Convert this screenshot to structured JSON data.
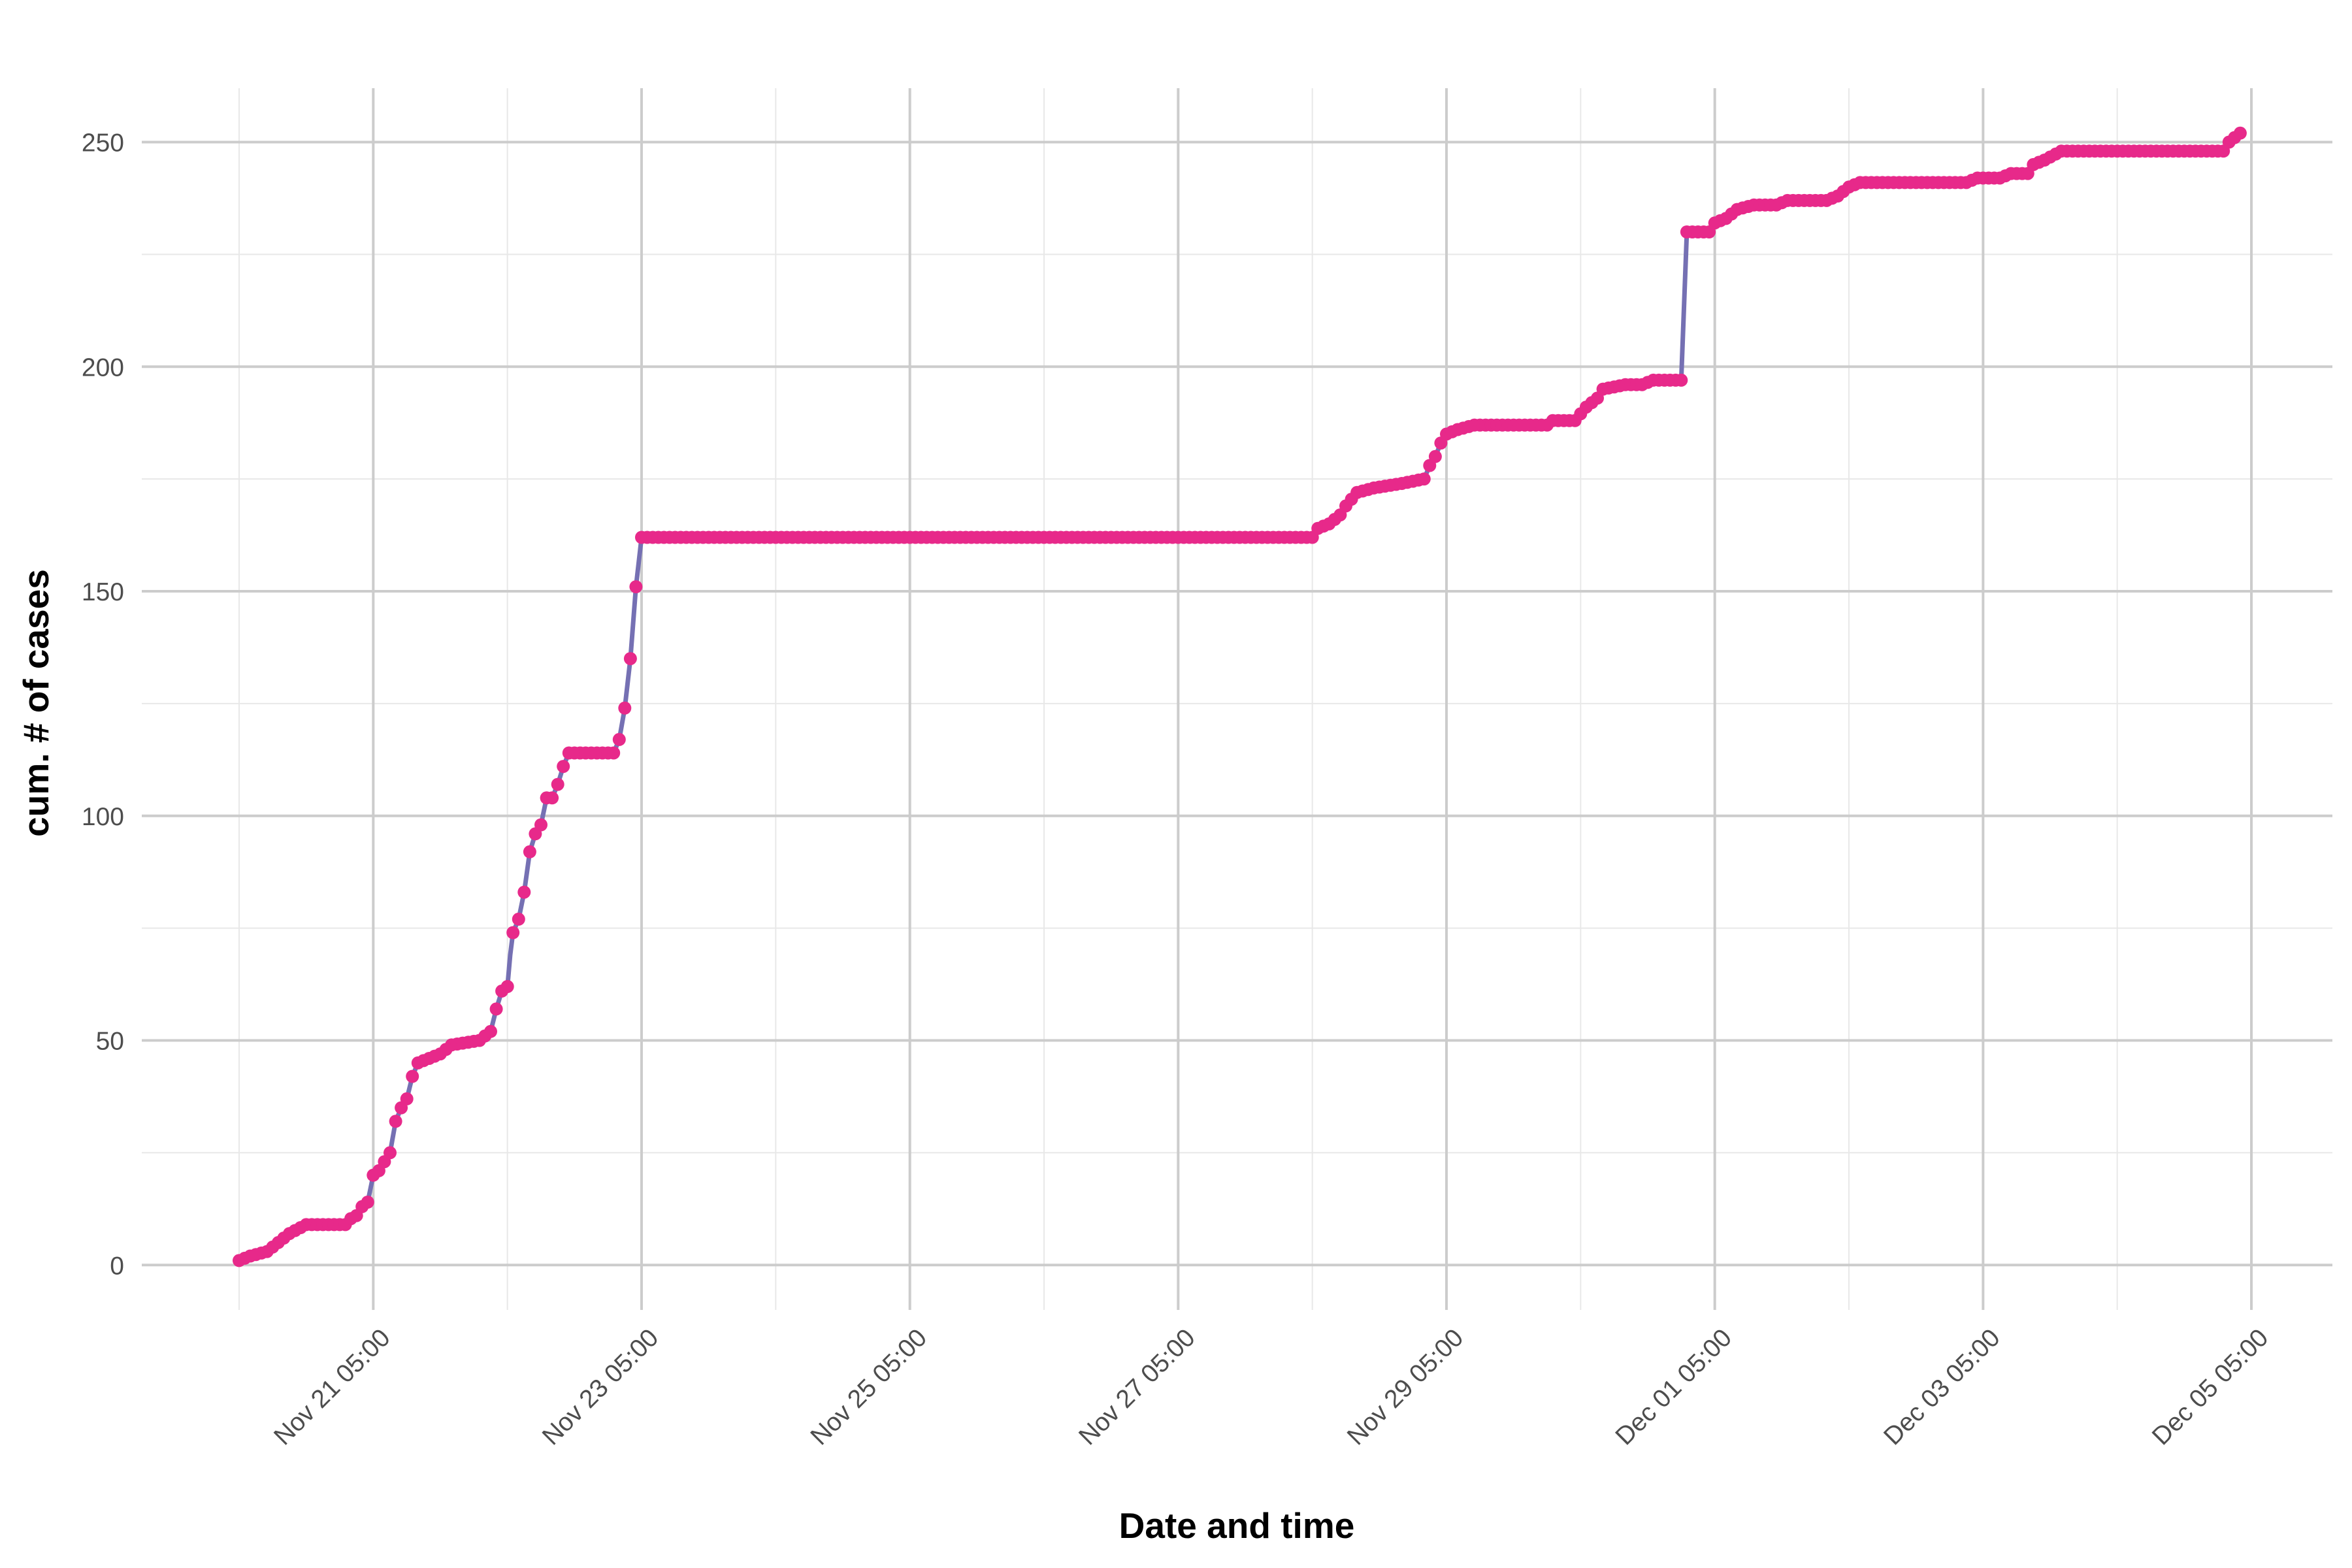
{
  "chart_data": {
    "type": "line",
    "title": "",
    "xlabel": "Date and time",
    "ylabel": "cum. # of cases",
    "x_axis": {
      "kind": "datetime",
      "range": [
        "2020-11-20 05:00",
        "2020-12-05 05:00"
      ],
      "tick_labels": [
        "Nov 21 05:00",
        "Nov 23 05:00",
        "Nov 25 05:00",
        "Nov 27 05:00",
        "Nov 29 05:00",
        "Dec 01 05:00",
        "Dec 03 05:00",
        "Dec 05 05:00"
      ],
      "tick_values": [
        "2020-11-21 05:00",
        "2020-11-23 05:00",
        "2020-11-25 05:00",
        "2020-11-27 05:00",
        "2020-11-29 05:00",
        "2020-12-01 05:00",
        "2020-12-03 05:00",
        "2020-12-05 05:00"
      ]
    },
    "y_axis": {
      "range": [
        -10,
        262
      ],
      "ticks": [
        0,
        50,
        100,
        150,
        200,
        250
      ]
    },
    "grid": true,
    "legend": "none",
    "colors": {
      "line": "#7570b3",
      "points": "#e7298a"
    },
    "series": [
      {
        "points": [
          [
            "2020-11-20 05:00",
            1
          ],
          [
            "2020-11-20 07:00",
            2
          ],
          [
            "2020-11-20 10:00",
            3
          ],
          [
            "2020-11-20 12:00",
            5
          ],
          [
            "2020-11-20 14:00",
            7
          ],
          [
            "2020-11-20 17:00",
            9
          ],
          [
            "2020-11-21 00:00",
            9
          ],
          [
            "2020-11-21 00:30",
            10
          ],
          [
            "2020-11-21 02:00",
            11
          ],
          [
            "2020-11-21 03:00",
            13
          ],
          [
            "2020-11-21 04:00",
            14
          ],
          [
            "2020-11-21 05:00",
            20
          ],
          [
            "2020-11-21 06:00",
            21
          ],
          [
            "2020-11-21 08:00",
            25
          ],
          [
            "2020-11-21 09:00",
            32
          ],
          [
            "2020-11-21 10:00",
            35
          ],
          [
            "2020-11-21 11:00",
            37
          ],
          [
            "2020-11-21 12:00",
            42
          ],
          [
            "2020-11-21 13:00",
            45
          ],
          [
            "2020-11-21 15:00",
            46
          ],
          [
            "2020-11-21 17:00",
            47
          ],
          [
            "2020-11-21 18:00",
            48
          ],
          [
            "2020-11-21 19:00",
            49
          ],
          [
            "2020-11-22 00:00",
            50
          ],
          [
            "2020-11-22 02:00",
            52
          ],
          [
            "2020-11-22 03:00",
            57
          ],
          [
            "2020-11-22 04:00",
            61
          ],
          [
            "2020-11-22 05:00",
            62
          ],
          [
            "2020-11-22 05:30",
            69
          ],
          [
            "2020-11-22 06:00",
            74
          ],
          [
            "2020-11-22 07:00",
            77
          ],
          [
            "2020-11-22 08:00",
            83
          ],
          [
            "2020-11-22 09:00",
            92
          ],
          [
            "2020-11-22 10:00",
            96
          ],
          [
            "2020-11-22 11:00",
            98
          ],
          [
            "2020-11-22 12:00",
            104
          ],
          [
            "2020-11-22 13:00",
            104
          ],
          [
            "2020-11-22 14:00",
            107
          ],
          [
            "2020-11-22 15:00",
            111
          ],
          [
            "2020-11-22 16:00",
            114
          ],
          [
            "2020-11-23 00:00",
            114
          ],
          [
            "2020-11-23 01:00",
            117
          ],
          [
            "2020-11-23 02:00",
            124
          ],
          [
            "2020-11-23 03:00",
            135
          ],
          [
            "2020-11-23 04:00",
            151
          ],
          [
            "2020-11-23 05:00",
            162
          ],
          [
            "2020-11-28 05:00",
            162
          ],
          [
            "2020-11-28 06:00",
            164
          ],
          [
            "2020-11-28 08:00",
            165
          ],
          [
            "2020-11-28 10:00",
            167
          ],
          [
            "2020-11-28 11:00",
            169
          ],
          [
            "2020-11-28 13:00",
            172
          ],
          [
            "2020-11-28 16:00",
            173
          ],
          [
            "2020-11-28 21:00",
            174
          ],
          [
            "2020-11-29 01:00",
            175
          ],
          [
            "2020-11-29 02:00",
            178
          ],
          [
            "2020-11-29 03:00",
            180
          ],
          [
            "2020-11-29 04:00",
            183
          ],
          [
            "2020-11-29 05:00",
            185
          ],
          [
            "2020-11-29 07:00",
            186
          ],
          [
            "2020-11-29 10:00",
            187
          ],
          [
            "2020-11-29 23:00",
            187
          ],
          [
            "2020-11-30 00:00",
            188
          ],
          [
            "2020-11-30 04:00",
            188
          ],
          [
            "2020-11-30 06:00",
            191
          ],
          [
            "2020-11-30 08:00",
            193
          ],
          [
            "2020-11-30 09:00",
            195
          ],
          [
            "2020-11-30 13:00",
            196
          ],
          [
            "2020-11-30 16:00",
            196
          ],
          [
            "2020-11-30 18:00",
            197
          ],
          [
            "2020-11-30 23:00",
            197
          ],
          [
            "2020-12-01 00:00",
            230
          ],
          [
            "2020-12-01 04:00",
            230
          ],
          [
            "2020-12-01 05:00",
            232
          ],
          [
            "2020-12-01 07:00",
            233
          ],
          [
            "2020-12-01 09:00",
            235
          ],
          [
            "2020-12-01 12:00",
            236
          ],
          [
            "2020-12-01 16:00",
            236
          ],
          [
            "2020-12-01 18:00",
            237
          ],
          [
            "2020-12-02 01:00",
            237
          ],
          [
            "2020-12-02 03:00",
            238
          ],
          [
            "2020-12-02 05:00",
            240
          ],
          [
            "2020-12-02 07:00",
            241
          ],
          [
            "2020-12-03 02:00",
            241
          ],
          [
            "2020-12-03 04:00",
            242
          ],
          [
            "2020-12-03 08:00",
            242
          ],
          [
            "2020-12-03 10:00",
            243
          ],
          [
            "2020-12-03 13:00",
            243
          ],
          [
            "2020-12-03 14:00",
            245
          ],
          [
            "2020-12-03 16:00",
            246
          ],
          [
            "2020-12-03 19:00",
            248
          ],
          [
            "2020-12-04 04:00",
            248
          ],
          [
            "2020-12-05 00:00",
            248
          ],
          [
            "2020-12-05 01:00",
            250
          ],
          [
            "2020-12-05 03:00",
            252
          ]
        ]
      }
    ]
  }
}
